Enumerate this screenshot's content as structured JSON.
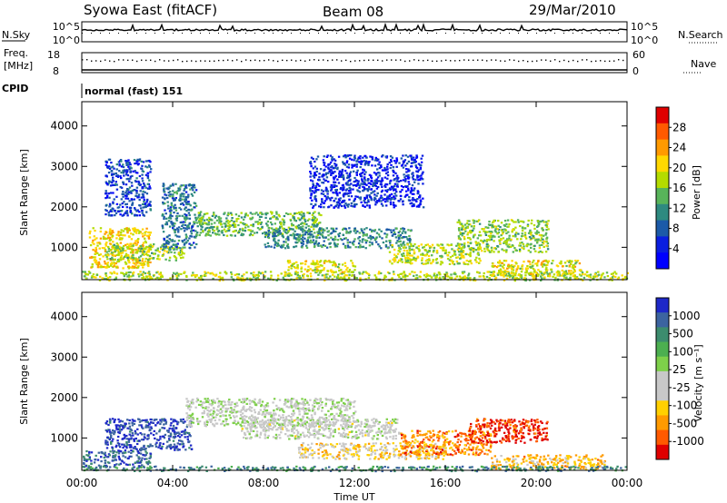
{
  "header": {
    "station": "Syowa East (fitACF)",
    "beam": "Beam 08",
    "date": "29/Mar/2010"
  },
  "aux": {
    "nsky_label": "N.Sky",
    "nsky_ticks": [
      "10^5",
      "10^0"
    ],
    "nsearch_label": "N.Search",
    "nsearch_ticks": [
      "10^5",
      "10^0"
    ],
    "freq_label_1": "Freq.",
    "freq_label_2": "[MHz]",
    "freq_ticks": [
      "18",
      "8"
    ],
    "nave_label": "Nave",
    "nave_ticks": [
      "60",
      "0"
    ],
    "cpid_label": "CPID",
    "cpid_value": "normal (fast) 151"
  },
  "chart_data": [
    {
      "type": "heatmap",
      "name": "power",
      "ylabel": "Slant Range [km]",
      "yticks": [
        1000,
        2000,
        3000,
        4000
      ],
      "ylim": [
        200,
        4600
      ],
      "xlim": [
        0,
        24
      ],
      "xticks": [
        "00:00",
        "04:00",
        "08:00",
        "12:00",
        "16:00",
        "20:00",
        "00:00"
      ],
      "colorbar": {
        "label": "Power [dB]",
        "ticks": [
          "28",
          "24",
          "20",
          "16",
          "12",
          "8",
          "4"
        ],
        "colors": [
          "#e00000",
          "#ff5a00",
          "#ff9a00",
          "#ffd800",
          "#b4dc00",
          "#58b45a",
          "#2e8a80",
          "#1c5aa8",
          "#0a1ee0",
          "#0000ff"
        ]
      },
      "bands": [
        {
          "t0": 0.0,
          "t1": 24.0,
          "r0": 200,
          "r1": 420,
          "level": 0.55
        },
        {
          "t0": 0.3,
          "t1": 3.0,
          "r0": 500,
          "r1": 1500,
          "level": 0.65
        },
        {
          "t0": 1.0,
          "t1": 4.5,
          "r0": 700,
          "r1": 1100,
          "level": 0.5
        },
        {
          "t0": 3.5,
          "t1": 5.0,
          "r0": 1000,
          "r1": 2600,
          "level": 0.3
        },
        {
          "t0": 5.0,
          "t1": 10.5,
          "r0": 1300,
          "r1": 1900,
          "level": 0.45
        },
        {
          "t0": 8.0,
          "t1": 14.5,
          "r0": 1000,
          "r1": 1500,
          "level": 0.35
        },
        {
          "t0": 9.0,
          "t1": 12.0,
          "r0": 400,
          "r1": 700,
          "level": 0.6
        },
        {
          "t0": 13.5,
          "t1": 17.5,
          "r0": 600,
          "r1": 1100,
          "level": 0.55
        },
        {
          "t0": 16.5,
          "t1": 20.5,
          "r0": 900,
          "r1": 1700,
          "level": 0.5
        },
        {
          "t0": 18.0,
          "t1": 22.0,
          "r0": 300,
          "r1": 700,
          "level": 0.6
        },
        {
          "t0": 10.0,
          "t1": 15.0,
          "r0": 2000,
          "r1": 3300,
          "level": 0.15
        },
        {
          "t0": 1.0,
          "t1": 3.0,
          "r0": 1800,
          "r1": 3200,
          "level": 0.2
        }
      ]
    },
    {
      "type": "heatmap",
      "name": "velocity",
      "ylabel": "Slant Range [km]",
      "yticks": [
        1000,
        2000,
        3000,
        4000
      ],
      "ylim": [
        200,
        4600
      ],
      "xlim": [
        0,
        24
      ],
      "xlabel": "Time UT",
      "xticks": [
        "00:00",
        "04:00",
        "08:00",
        "12:00",
        "16:00",
        "20:00",
        "00:00"
      ],
      "colorbar": {
        "label": "Velocity [m s⁻¹]",
        "ticks": [
          "1000",
          "500",
          "100",
          "25",
          "-25",
          "-100",
          "-500",
          "-1000"
        ],
        "colors": [
          "#1e28c8",
          "#3c64a0",
          "#3c8c6e",
          "#4caf50",
          "#7ed04a",
          "#c8c8c8",
          "#c8c8c8",
          "#ffd000",
          "#ff9a00",
          "#ff5a00",
          "#e00000"
        ]
      },
      "bands": [
        {
          "t0": 0.0,
          "t1": 3.0,
          "r0": 300,
          "r1": 700,
          "level": 0.85
        },
        {
          "t0": 1.0,
          "t1": 4.8,
          "r0": 700,
          "r1": 1500,
          "level": 0.92
        },
        {
          "t0": 4.5,
          "t1": 12.0,
          "r0": 1300,
          "r1": 2000,
          "level": 0.5
        },
        {
          "t0": 7.0,
          "t1": 14.0,
          "r0": 1000,
          "r1": 1500,
          "level": 0.48
        },
        {
          "t0": 9.5,
          "t1": 16.0,
          "r0": 500,
          "r1": 900,
          "level": 0.35
        },
        {
          "t0": 14.0,
          "t1": 18.0,
          "r0": 600,
          "r1": 1200,
          "level": 0.2
        },
        {
          "t0": 17.0,
          "t1": 20.5,
          "r0": 900,
          "r1": 1500,
          "level": 0.08
        },
        {
          "t0": 18.0,
          "t1": 23.0,
          "r0": 250,
          "r1": 600,
          "level": 0.3
        },
        {
          "t0": 0.0,
          "t1": 24.0,
          "r0": 200,
          "r1": 320,
          "level": 0.78
        }
      ]
    }
  ]
}
